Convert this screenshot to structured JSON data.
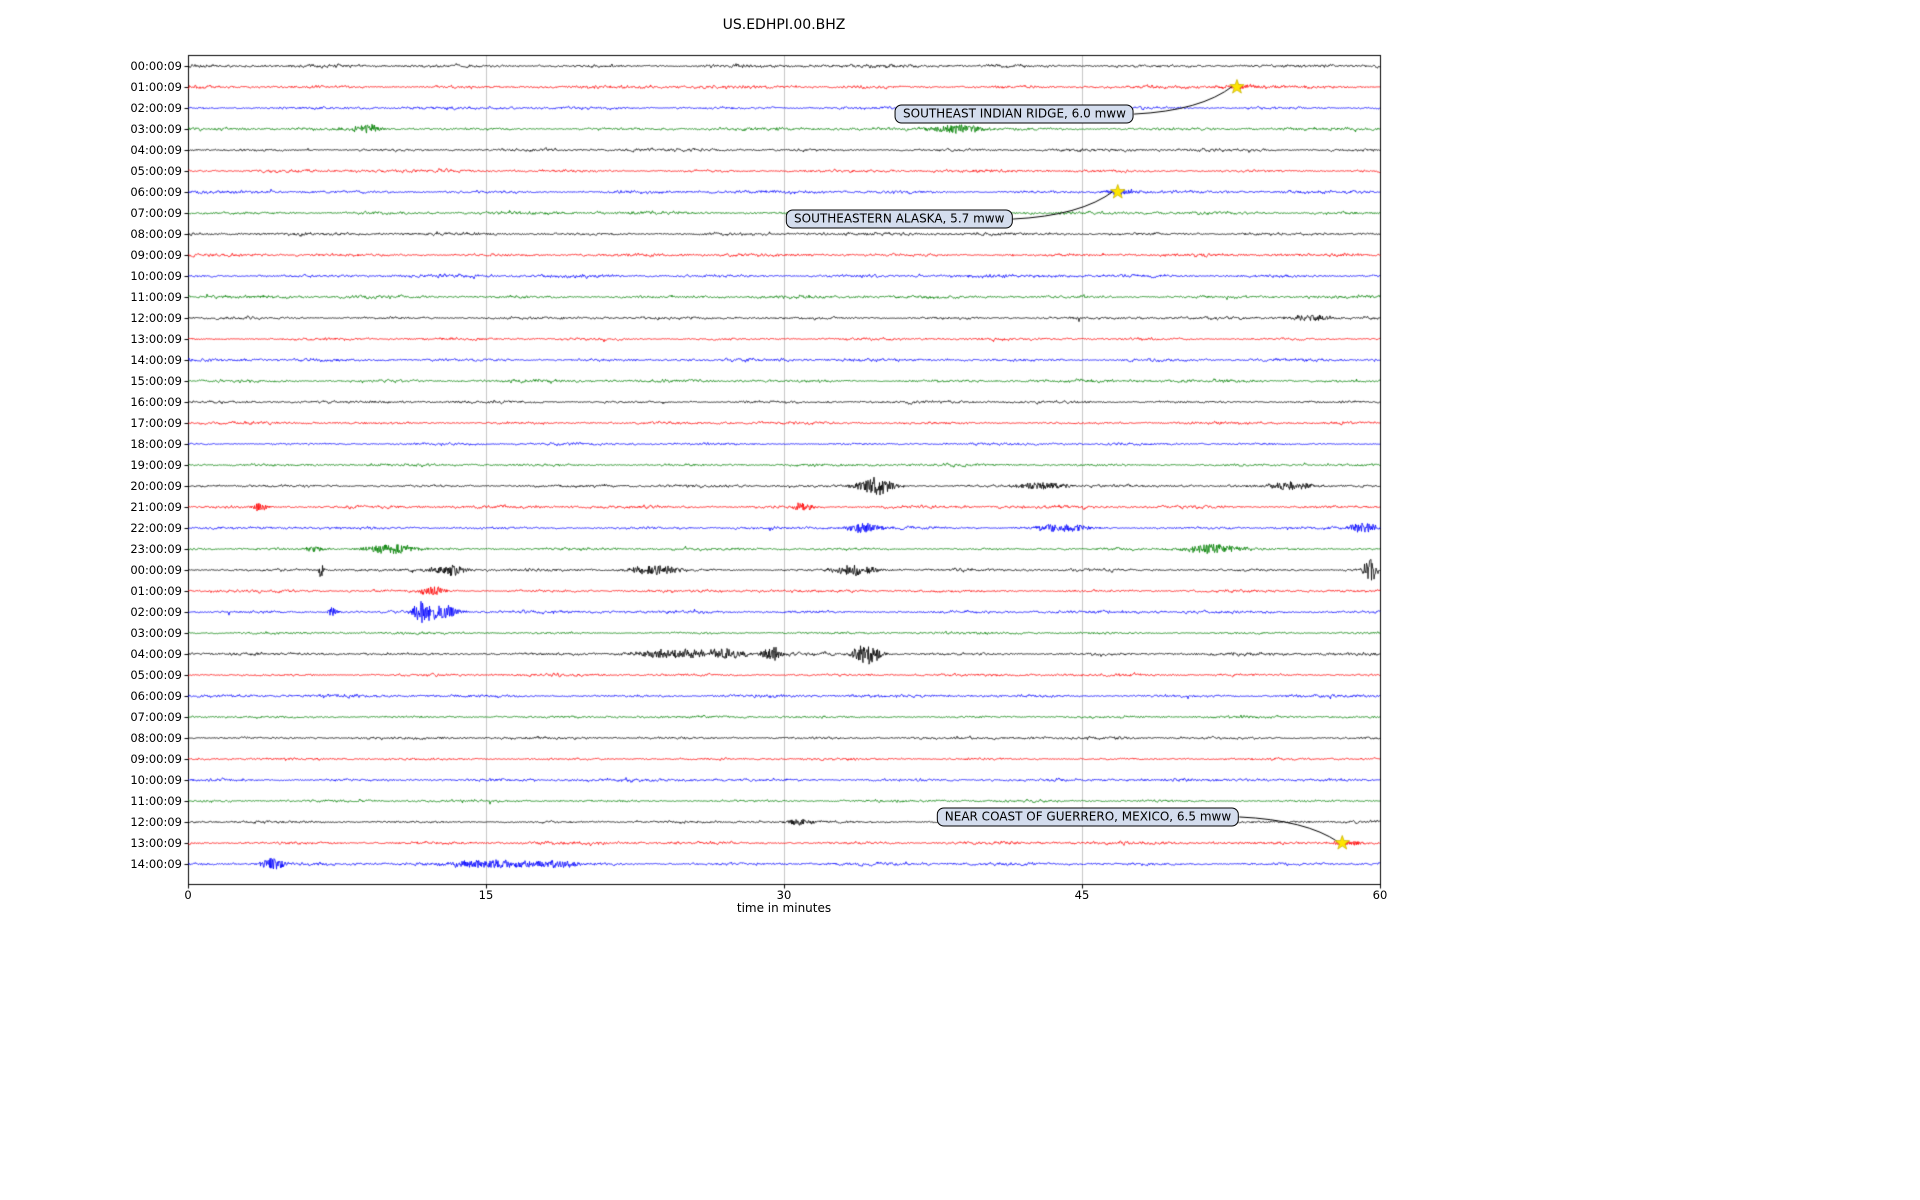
{
  "figure": {
    "title": "US.EDHPI.00.BHZ",
    "background_color": "#ffffff"
  },
  "chart_data": {
    "type": "line",
    "subtype": "helicorder-day-plot",
    "title": "US.EDHPI.00.BHZ",
    "xlabel": "time in minutes",
    "xlim": [
      0,
      60
    ],
    "x_ticks": [
      0,
      15,
      30,
      45,
      60
    ],
    "grid": "vertical gridlines at x ticks",
    "minutes_per_row": 60,
    "legend": "none",
    "trace_color_cycle": [
      "#000000",
      "#ff0000",
      "#0000ff",
      "#008000"
    ],
    "rows": [
      "00:00:09",
      "01:00:09",
      "02:00:09",
      "03:00:09",
      "04:00:09",
      "05:00:09",
      "06:00:09",
      "07:00:09",
      "08:00:09",
      "09:00:09",
      "10:00:09",
      "11:00:09",
      "12:00:09",
      "13:00:09",
      "14:00:09",
      "15:00:09",
      "16:00:09",
      "17:00:09",
      "18:00:09",
      "19:00:09",
      "20:00:09",
      "21:00:09",
      "22:00:09",
      "23:00:09",
      "00:00:09",
      "01:00:09",
      "02:00:09",
      "03:00:09",
      "04:00:09",
      "05:00:09",
      "06:00:09",
      "07:00:09",
      "08:00:09",
      "09:00:09",
      "10:00:09",
      "11:00:09",
      "12:00:09",
      "13:00:09",
      "14:00:09"
    ],
    "events": [
      {
        "label": "SOUTHEAST INDIAN RIDGE, 6.0 mww",
        "trace_row": 1,
        "star_minute": 52.8,
        "label_center_minute": 41.6,
        "label_center_row": 2.29,
        "marker": "star-icon",
        "marker_color": "#ffe600"
      },
      {
        "label": "SOUTHEASTERN ALASKA, 5.7 mww",
        "trace_row": 6,
        "star_minute": 46.8,
        "label_center_minute": 35.8,
        "label_center_row": 7.29,
        "marker": "star-icon",
        "marker_color": "#ffe600"
      },
      {
        "label": "NEAR COAST OF GUERRERO, MEXICO, 6.5 mww",
        "trace_row": 37,
        "star_minute": 58.1,
        "label_center_minute": 45.3,
        "label_center_row": 35.76,
        "marker": "star-icon",
        "marker_color": "#ffe600"
      }
    ],
    "signal_bursts": [
      {
        "row": 1,
        "minute": 53.0,
        "width": 1.2,
        "amp": 2.5
      },
      {
        "row": 3,
        "minute": 9.0,
        "width": 0.8,
        "amp": 4
      },
      {
        "row": 3,
        "minute": 38.8,
        "width": 1.6,
        "amp": 4
      },
      {
        "row": 6,
        "minute": 47.0,
        "width": 1.2,
        "amp": 2.5
      },
      {
        "row": 12,
        "minute": 56.5,
        "width": 1.2,
        "amp": 3
      },
      {
        "row": 20,
        "minute": 34.6,
        "width": 1.0,
        "amp": 9
      },
      {
        "row": 20,
        "minute": 43.0,
        "width": 1.4,
        "amp": 4
      },
      {
        "row": 20,
        "minute": 55.5,
        "width": 1.2,
        "amp": 4
      },
      {
        "row": 21,
        "minute": 3.6,
        "width": 0.5,
        "amp": 4
      },
      {
        "row": 21,
        "minute": 31.0,
        "width": 0.5,
        "amp": 5
      },
      {
        "row": 22,
        "minute": 34.0,
        "width": 1.0,
        "amp": 5
      },
      {
        "row": 22,
        "minute": 44.0,
        "width": 1.6,
        "amp": 4
      },
      {
        "row": 22,
        "minute": 59.2,
        "width": 0.8,
        "amp": 5
      },
      {
        "row": 23,
        "minute": 6.3,
        "width": 0.6,
        "amp": 3
      },
      {
        "row": 23,
        "minute": 10.2,
        "width": 1.4,
        "amp": 5
      },
      {
        "row": 23,
        "minute": 51.6,
        "width": 1.4,
        "amp": 5
      },
      {
        "row": 24,
        "minute": 6.7,
        "width": 0.12,
        "amp": 11
      },
      {
        "row": 24,
        "minute": 13.2,
        "width": 0.9,
        "amp": 5
      },
      {
        "row": 24,
        "minute": 23.5,
        "width": 1.4,
        "amp": 5
      },
      {
        "row": 24,
        "minute": 33.6,
        "width": 1.2,
        "amp": 5
      },
      {
        "row": 24,
        "minute": 59.5,
        "width": 0.4,
        "amp": 11
      },
      {
        "row": 25,
        "minute": 12.3,
        "width": 0.7,
        "amp": 5
      },
      {
        "row": 26,
        "minute": 7.3,
        "width": 0.3,
        "amp": 5
      },
      {
        "row": 26,
        "minute": 11.8,
        "width": 0.5,
        "amp": 12
      },
      {
        "row": 26,
        "minute": 12.8,
        "width": 0.9,
        "amp": 7
      },
      {
        "row": 28,
        "minute": 24.5,
        "width": 2.2,
        "amp": 4
      },
      {
        "row": 28,
        "minute": 27.0,
        "width": 1.2,
        "amp": 5
      },
      {
        "row": 28,
        "minute": 29.4,
        "width": 0.5,
        "amp": 8
      },
      {
        "row": 28,
        "minute": 34.2,
        "width": 0.7,
        "amp": 12
      },
      {
        "row": 36,
        "minute": 30.8,
        "width": 0.8,
        "amp": 3
      },
      {
        "row": 37,
        "minute": 58.3,
        "width": 1.0,
        "amp": 2.5
      },
      {
        "row": 38,
        "minute": 4.3,
        "width": 0.7,
        "amp": 6
      },
      {
        "row": 38,
        "minute": 15.5,
        "width": 2.5,
        "amp": 4
      },
      {
        "row": 38,
        "minute": 18.5,
        "width": 1.5,
        "amp": 3.5
      }
    ]
  }
}
